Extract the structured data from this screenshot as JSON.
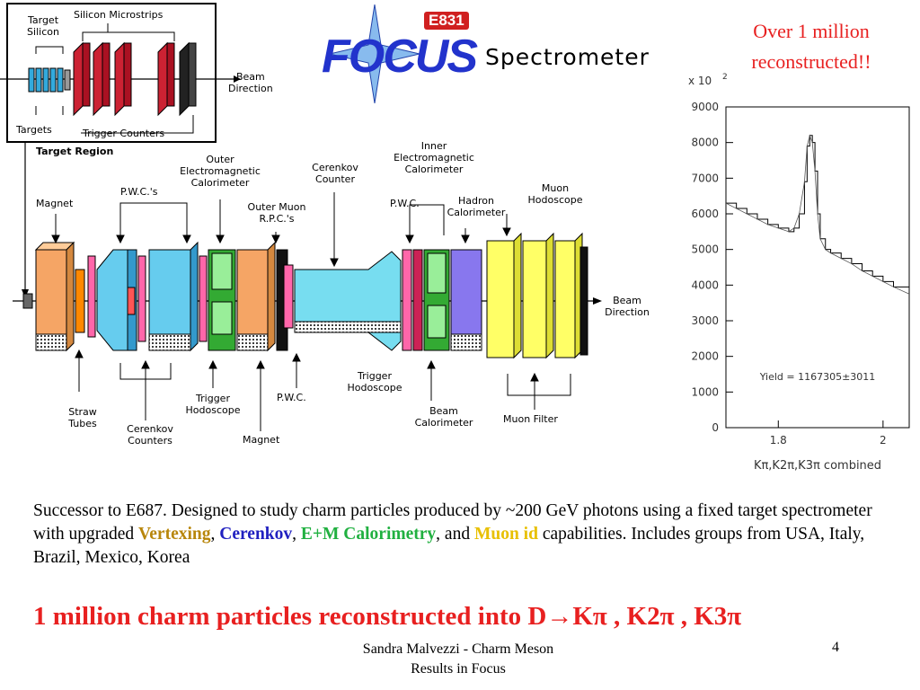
{
  "logo": {
    "experiment": "E831",
    "name": "FOCUS",
    "subtitle": "Spectrometer"
  },
  "note": {
    "line1": "Over 1 million",
    "line2": "reconstructed!!"
  },
  "target_inset": {
    "target_silicon": [
      "Target",
      "Silicon"
    ],
    "silicon_microstrips": "Silicon Microstrips",
    "beam_direction": [
      "Beam",
      "Direction"
    ],
    "targets": "Targets",
    "trigger_counters": "Trigger Counters",
    "region_label": "Target Region"
  },
  "spectrometer_labels": {
    "magnet_1": "Magnet",
    "pwcs": "P.W.C.'s",
    "outer_em_cal": [
      "Outer",
      "Electromagnetic",
      "Calorimeter"
    ],
    "outer_muon_rpc": [
      "Outer Muon",
      "R.P.C.'s"
    ],
    "cerenkov_counter": [
      "Cerenkov",
      "Counter"
    ],
    "pwc_1": "P.W.C.",
    "inner_em_cal": [
      "Inner",
      "Electromagnetic",
      "Calorimeter"
    ],
    "hadron_cal": [
      "Hadron",
      "Calorimeter"
    ],
    "muon_hodoscope": [
      "Muon",
      "Hodoscope"
    ],
    "beam_direction": [
      "Beam",
      "Direction"
    ],
    "straw_tubes": [
      "Straw",
      "Tubes"
    ],
    "cerenkov_counters": [
      "Cerenkov",
      "Counters"
    ],
    "trigger_hodoscope_1": [
      "Trigger",
      "Hodoscope"
    ],
    "magnet_2": "Magnet",
    "pwc_2": "P.W.C.",
    "trigger_hodoscope_2": [
      "Trigger",
      "Hodoscope"
    ],
    "beam_calorimeter": [
      "Beam",
      "Calorimeter"
    ],
    "muon_filter": "Muon Filter"
  },
  "chart_data": {
    "type": "line",
    "ylabel_multiplier": "x 10",
    "ylabel_exponent": "2",
    "y_ticks": [
      0,
      1000,
      2000,
      3000,
      4000,
      5000,
      6000,
      7000,
      8000,
      9000
    ],
    "x_ticks": [
      "1.8",
      "2"
    ],
    "x_tick_values": [
      1.8,
      2.0
    ],
    "xlim": [
      1.7,
      2.05
    ],
    "ylim": [
      0,
      9000
    ],
    "xlabel": "Kπ,K2π,K3π combined",
    "annotation": "Yield = 1167305±3011",
    "series": [
      {
        "x": [
          1.7,
          1.72,
          1.74,
          1.76,
          1.78,
          1.8,
          1.82,
          1.83,
          1.84,
          1.85,
          1.855,
          1.86,
          1.865,
          1.87,
          1.875,
          1.88,
          1.89,
          1.9,
          1.92,
          1.94,
          1.96,
          1.98,
          2.0,
          2.02,
          2.05
        ],
        "y": [
          6300,
          6150,
          6000,
          5850,
          5700,
          5600,
          5500,
          5600,
          6000,
          6900,
          7900,
          8200,
          8000,
          7200,
          6000,
          5300,
          5000,
          4900,
          4750,
          4600,
          4400,
          4250,
          4100,
          3950,
          3750
        ]
      }
    ]
  },
  "description": {
    "part1": "Successor to E687. Designed to study charm particles produced by ~200 GeV photons using a fixed target spectrometer with upgraded ",
    "vertexing": "Vertexing",
    "sep1": ", ",
    "cerenkov": "Cerenkov",
    "sep2": ", ",
    "emcal": "E+M Calorimetry",
    "part2": ", and ",
    "muon": "Muon id",
    "part3": " capabilities.  Includes groups from USA, Italy, Brazil, Mexico, Korea"
  },
  "headline": "1 million charm particles reconstructed into D→Kπ , K2π , K3π",
  "footer": {
    "line1": "Sandra Malvezzi - Charm Meson",
    "line2": "Results  in Focus",
    "page": "4"
  },
  "colors": {
    "accent_red": "#e82020",
    "vertexing": "#b8860b",
    "cerenkov": "#2020c0",
    "emcal": "#20b040",
    "muon": "#e8c000"
  }
}
